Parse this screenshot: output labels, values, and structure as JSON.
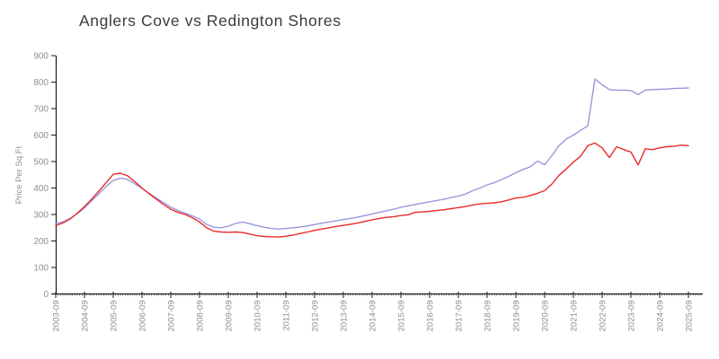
{
  "title": "Anglers Cove vs Redington Shores",
  "chart_data": {
    "type": "line",
    "title": "Anglers Cove vs Redington Shores",
    "xlabel": "",
    "ylabel": "Price Per Sq Ft",
    "ylim": [
      0,
      900
    ],
    "yticks": [
      0,
      100,
      200,
      300,
      400,
      500,
      600,
      700,
      800,
      900
    ],
    "xtick_labels": [
      "2003-09",
      "2004-09",
      "2005-09",
      "2006-09",
      "2007-09",
      "2008-09",
      "2009-09",
      "2010-09",
      "2011-09",
      "2012-09",
      "2013-09",
      "2014-09",
      "2015-09",
      "2016-09",
      "2017-09",
      "2018-09",
      "2019-09",
      "2020-09",
      "2021-09",
      "2022-09",
      "2023-09",
      "2024-09",
      "2025-09"
    ],
    "grid": false,
    "legend_position": "none",
    "x": [
      "2003-09",
      "2003-12",
      "2004-03",
      "2004-06",
      "2004-09",
      "2004-12",
      "2005-03",
      "2005-06",
      "2005-09",
      "2005-12",
      "2006-03",
      "2006-06",
      "2006-09",
      "2006-12",
      "2007-03",
      "2007-06",
      "2007-09",
      "2007-12",
      "2008-03",
      "2008-06",
      "2008-09",
      "2008-12",
      "2009-03",
      "2009-06",
      "2009-09",
      "2009-12",
      "2010-03",
      "2010-06",
      "2010-09",
      "2010-12",
      "2011-03",
      "2011-06",
      "2011-09",
      "2011-12",
      "2012-03",
      "2012-06",
      "2012-09",
      "2012-12",
      "2013-03",
      "2013-06",
      "2013-09",
      "2013-12",
      "2014-03",
      "2014-06",
      "2014-09",
      "2014-12",
      "2015-03",
      "2015-06",
      "2015-09",
      "2015-12",
      "2016-03",
      "2016-06",
      "2016-09",
      "2016-12",
      "2017-03",
      "2017-06",
      "2017-09",
      "2017-12",
      "2018-03",
      "2018-06",
      "2018-09",
      "2018-12",
      "2019-03",
      "2019-06",
      "2019-09",
      "2019-12",
      "2020-03",
      "2020-06",
      "2020-09",
      "2020-12",
      "2021-03",
      "2021-06",
      "2021-09",
      "2021-12",
      "2022-03",
      "2022-06",
      "2022-09",
      "2022-12",
      "2023-03",
      "2023-06",
      "2023-09",
      "2023-12",
      "2024-03",
      "2024-06",
      "2024-09",
      "2024-12",
      "2025-03",
      "2025-06",
      "2025-09"
    ],
    "series": [
      {
        "name": "Anglers Cove",
        "color": "#ea2b2b",
        "values": [
          258,
          268,
          283,
          305,
          330,
          358,
          388,
          420,
          452,
          456,
          446,
          424,
          400,
          378,
          358,
          338,
          320,
          308,
          300,
          288,
          272,
          250,
          237,
          234,
          233,
          234,
          232,
          226,
          220,
          217,
          216,
          215,
          218,
          222,
          228,
          234,
          240,
          245,
          250,
          255,
          259,
          263,
          268,
          274,
          280,
          285,
          289,
          292,
          296,
          299,
          308,
          310,
          312,
          315,
          318,
          322,
          326,
          330,
          336,
          340,
          342,
          344,
          348,
          355,
          362,
          365,
          372,
          380,
          390,
          415,
          448,
          472,
          498,
          520,
          560,
          570,
          552,
          515,
          556,
          545,
          536,
          487,
          548,
          545,
          552,
          556,
          558,
          562,
          560
        ]
      },
      {
        "name": "Redington Shores",
        "color": "#9898dd",
        "values": [
          265,
          272,
          285,
          303,
          325,
          352,
          378,
          406,
          428,
          438,
          432,
          416,
          398,
          380,
          362,
          345,
          328,
          315,
          305,
          295,
          283,
          262,
          252,
          250,
          256,
          266,
          272,
          265,
          258,
          252,
          247,
          245,
          247,
          250,
          253,
          257,
          262,
          267,
          272,
          276,
          281,
          285,
          290,
          296,
          302,
          308,
          314,
          320,
          327,
          333,
          338,
          343,
          348,
          353,
          358,
          364,
          370,
          377,
          390,
          400,
          412,
          420,
          432,
          444,
          458,
          470,
          480,
          502,
          488,
          522,
          560,
          585,
          600,
          618,
          635,
          812,
          790,
          772,
          770,
          770,
          768,
          753,
          770,
          772,
          773,
          774,
          776,
          777,
          778
        ]
      }
    ]
  },
  "axis_style": {
    "axis_color": "#1a1a1a",
    "tick_label_color": "#8f8f8f"
  }
}
